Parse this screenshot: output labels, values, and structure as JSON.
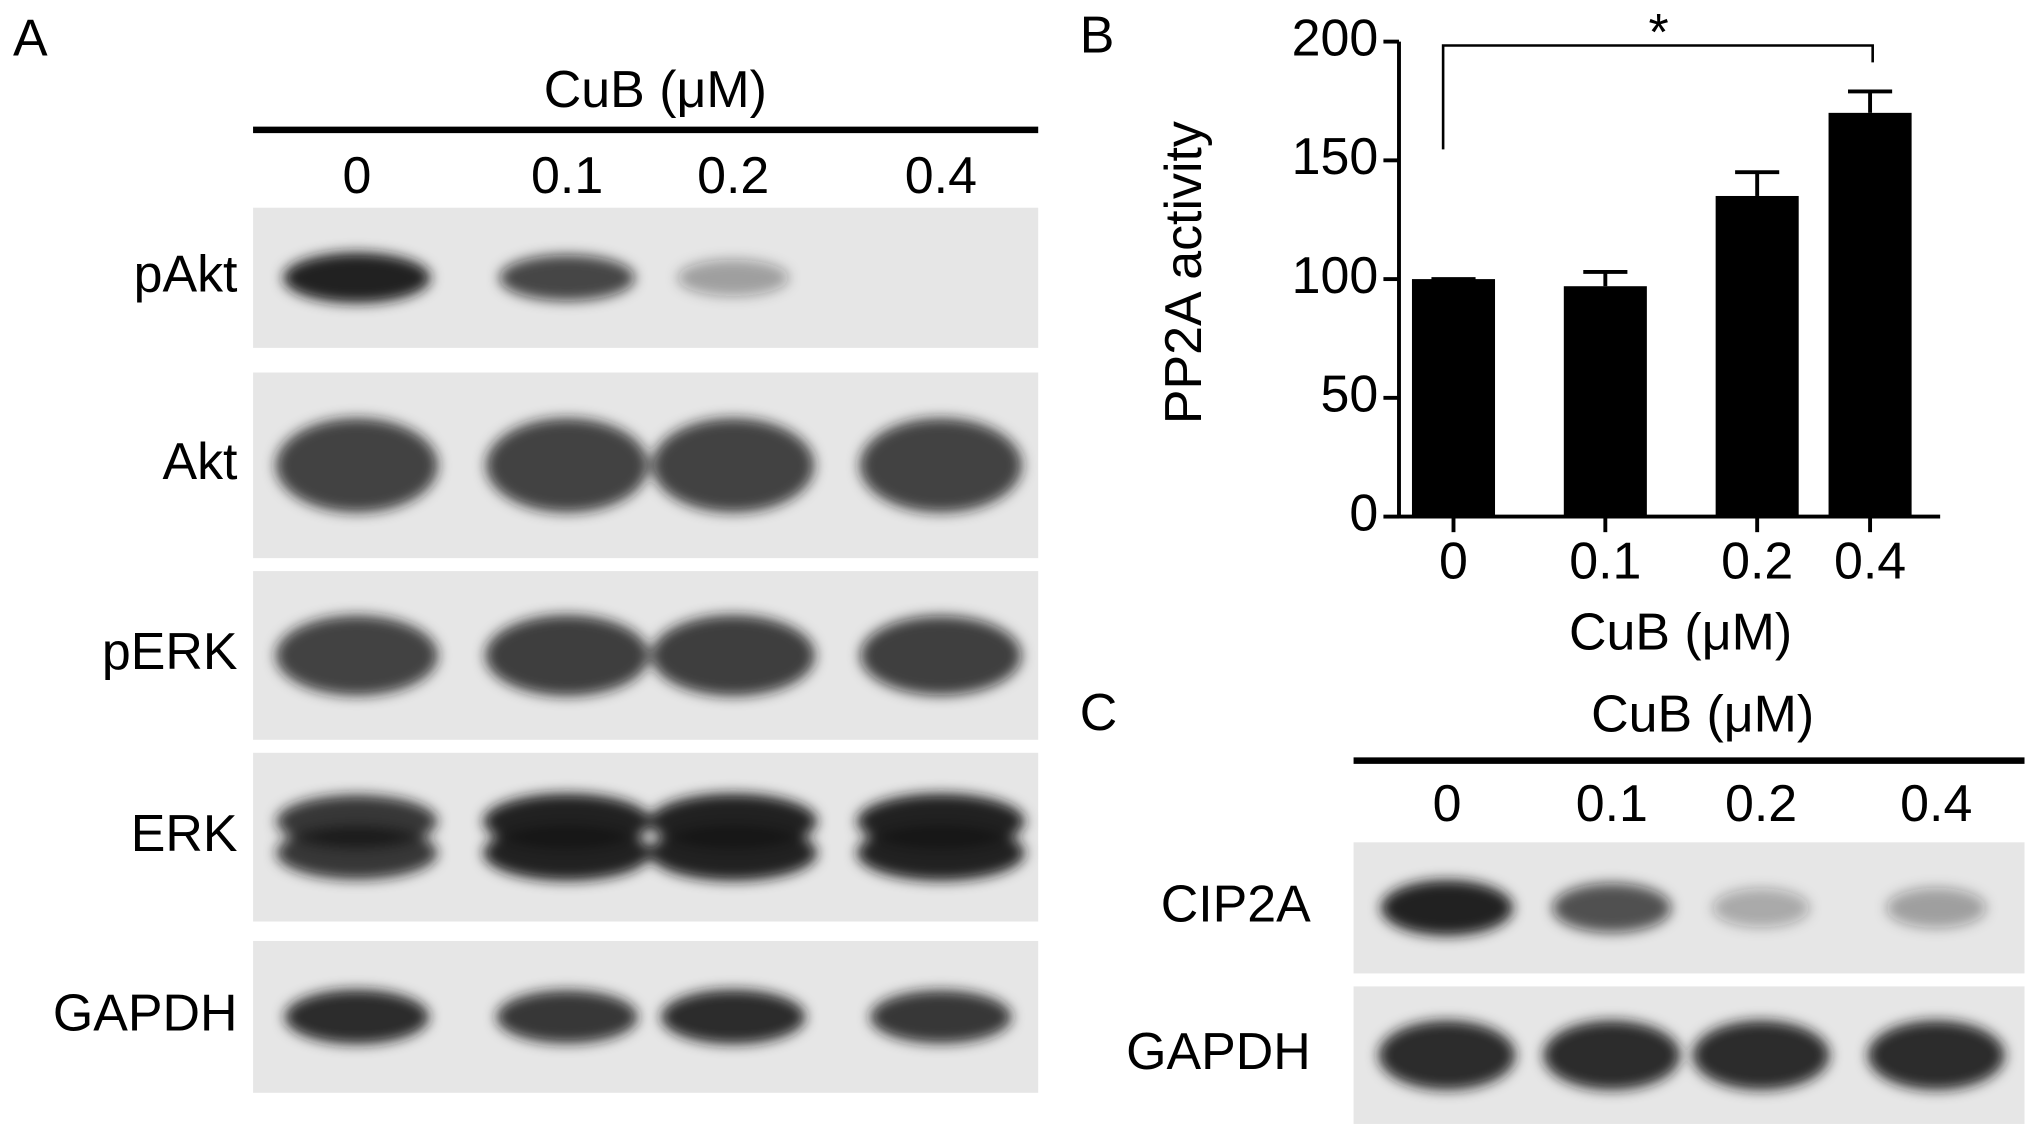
{
  "chart_data": {
    "type": "bar",
    "panel_label": "B",
    "ylabel": "PP2A activity",
    "xlabel": "CuB (μM)",
    "categories": [
      "0",
      "0.1",
      "0.2",
      "0.4"
    ],
    "values": [
      100,
      97,
      135,
      170
    ],
    "errors": [
      0,
      6,
      10,
      9
    ],
    "color": "#000000",
    "ylim": [
      0,
      200
    ],
    "yticks": [
      0,
      50,
      100,
      150,
      200
    ],
    "annotation": "*"
  },
  "blot_a": {
    "panel_label": "A",
    "header": "CuB (μM)",
    "lanes": [
      "0",
      "0.1",
      "0.2",
      "0.4"
    ],
    "rows": [
      "pAkt",
      "Akt",
      "pERK",
      "ERK",
      "GAPDH"
    ]
  },
  "blot_c": {
    "panel_label": "C",
    "header": "CuB (μM)",
    "lanes": [
      "0",
      "0.1",
      "0.2",
      "0.4"
    ],
    "rows": [
      "CIP2A",
      "GAPDH"
    ]
  }
}
